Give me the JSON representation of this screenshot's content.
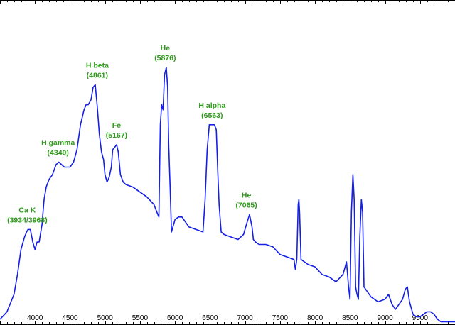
{
  "chart_data": {
    "type": "line",
    "title": "",
    "xlabel": "",
    "ylabel": "",
    "xlim": [
      3500,
      10000
    ],
    "ylim": [
      0,
      1.3
    ],
    "grid": false,
    "x_tick_labels": [
      "4000",
      "4500",
      "5000",
      "5500",
      "6000",
      "6500",
      "7000",
      "7500",
      "8000",
      "8500",
      "9000",
      "9500"
    ],
    "x_ticks": [
      4000,
      4500,
      5000,
      5500,
      6000,
      6500,
      7000,
      7500,
      8000,
      8500,
      9000,
      9500
    ],
    "series": [
      {
        "x": [
          3500,
          3600,
          3700,
          3750,
          3800,
          3850,
          3880,
          3900,
          3934,
          3968,
          4000,
          4030,
          4060,
          4100,
          4130,
          4160,
          4200,
          4250,
          4300,
          4340,
          4380,
          4420,
          4460,
          4500,
          4550,
          4600,
          4650,
          4700,
          4730,
          4760,
          4800,
          4830,
          4861,
          4890,
          4920,
          4950,
          4980,
          5000,
          5030,
          5060,
          5090,
          5110,
          5140,
          5167,
          5190,
          5220,
          5260,
          5300,
          5400,
          5500,
          5600,
          5700,
          5740,
          5770,
          5790,
          5810,
          5830,
          5850,
          5876,
          5895,
          5910,
          5930,
          5950,
          6000,
          6050,
          6100,
          6150,
          6200,
          6300,
          6400,
          6430,
          6460,
          6490,
          6520,
          6563,
          6590,
          6610,
          6630,
          6660,
          6700,
          6800,
          6900,
          6980,
          7020,
          7065,
          7100,
          7120,
          7150,
          7200,
          7300,
          7400,
          7500,
          7600,
          7700,
          7720,
          7740,
          7760,
          7770,
          7780,
          7800,
          7900,
          8000,
          8100,
          8200,
          8300,
          8400,
          8450,
          8480,
          8500,
          8520,
          8542,
          8560,
          8580,
          8600,
          8620,
          8640,
          8662,
          8680,
          8700,
          8800,
          8900,
          9000,
          9050,
          9100,
          9150,
          9200,
          9250,
          9290,
          9320,
          9350,
          9400,
          9450,
          9500,
          9550,
          9600,
          9650,
          9700,
          9750,
          9800,
          9850,
          9900,
          9950,
          10000
        ],
        "y": [
          0.02,
          0.05,
          0.12,
          0.2,
          0.3,
          0.35,
          0.37,
          0.38,
          0.38,
          0.33,
          0.3,
          0.33,
          0.33,
          0.4,
          0.5,
          0.55,
          0.58,
          0.6,
          0.64,
          0.65,
          0.64,
          0.63,
          0.63,
          0.63,
          0.65,
          0.7,
          0.8,
          0.86,
          0.88,
          0.88,
          0.9,
          0.95,
          0.96,
          0.87,
          0.76,
          0.69,
          0.66,
          0.6,
          0.57,
          0.59,
          0.63,
          0.7,
          0.71,
          0.72,
          0.69,
          0.6,
          0.57,
          0.56,
          0.55,
          0.53,
          0.51,
          0.48,
          0.45,
          0.43,
          0.8,
          0.88,
          0.86,
          1.0,
          1.03,
          0.95,
          0.72,
          0.55,
          0.37,
          0.42,
          0.43,
          0.43,
          0.41,
          0.39,
          0.38,
          0.37,
          0.5,
          0.7,
          0.8,
          0.8,
          0.8,
          0.78,
          0.62,
          0.48,
          0.37,
          0.36,
          0.35,
          0.34,
          0.36,
          0.4,
          0.44,
          0.39,
          0.34,
          0.33,
          0.32,
          0.32,
          0.31,
          0.28,
          0.27,
          0.26,
          0.22,
          0.26,
          0.48,
          0.5,
          0.45,
          0.26,
          0.24,
          0.23,
          0.2,
          0.19,
          0.17,
          0.2,
          0.25,
          0.15,
          0.1,
          0.45,
          0.6,
          0.5,
          0.15,
          0.12,
          0.1,
          0.35,
          0.5,
          0.45,
          0.15,
          0.11,
          0.09,
          0.1,
          0.12,
          0.08,
          0.06,
          0.08,
          0.1,
          0.14,
          0.15,
          0.09,
          0.04,
          0.03,
          0.03,
          0.04,
          0.05,
          0.05,
          0.04,
          0.02,
          0.01,
          0.01,
          0.01,
          0.01,
          0.01
        ]
      }
    ],
    "annotations": [
      {
        "line1": "Ca K",
        "line2": "(3934/3968)",
        "x": 3890,
        "y": 0.38
      },
      {
        "line1": "H gamma",
        "line2": "(4340)",
        "x": 4330,
        "y": 0.65
      },
      {
        "line1": "H beta",
        "line2": "(4861)",
        "x": 4890,
        "y": 0.96
      },
      {
        "line1": "Fe",
        "line2": "(5167)",
        "x": 5165,
        "y": 0.72
      },
      {
        "line1": "He",
        "line2": "(5876)",
        "x": 5860,
        "y": 1.03
      },
      {
        "line1": "H alpha",
        "line2": "(6563)",
        "x": 6530,
        "y": 0.8
      },
      {
        "line1": "He",
        "line2": "(7065)",
        "x": 7020,
        "y": 0.44
      }
    ],
    "colors": {
      "line": "#1520e6",
      "annotation": "#2e9a1a",
      "frame": "#000000"
    }
  }
}
